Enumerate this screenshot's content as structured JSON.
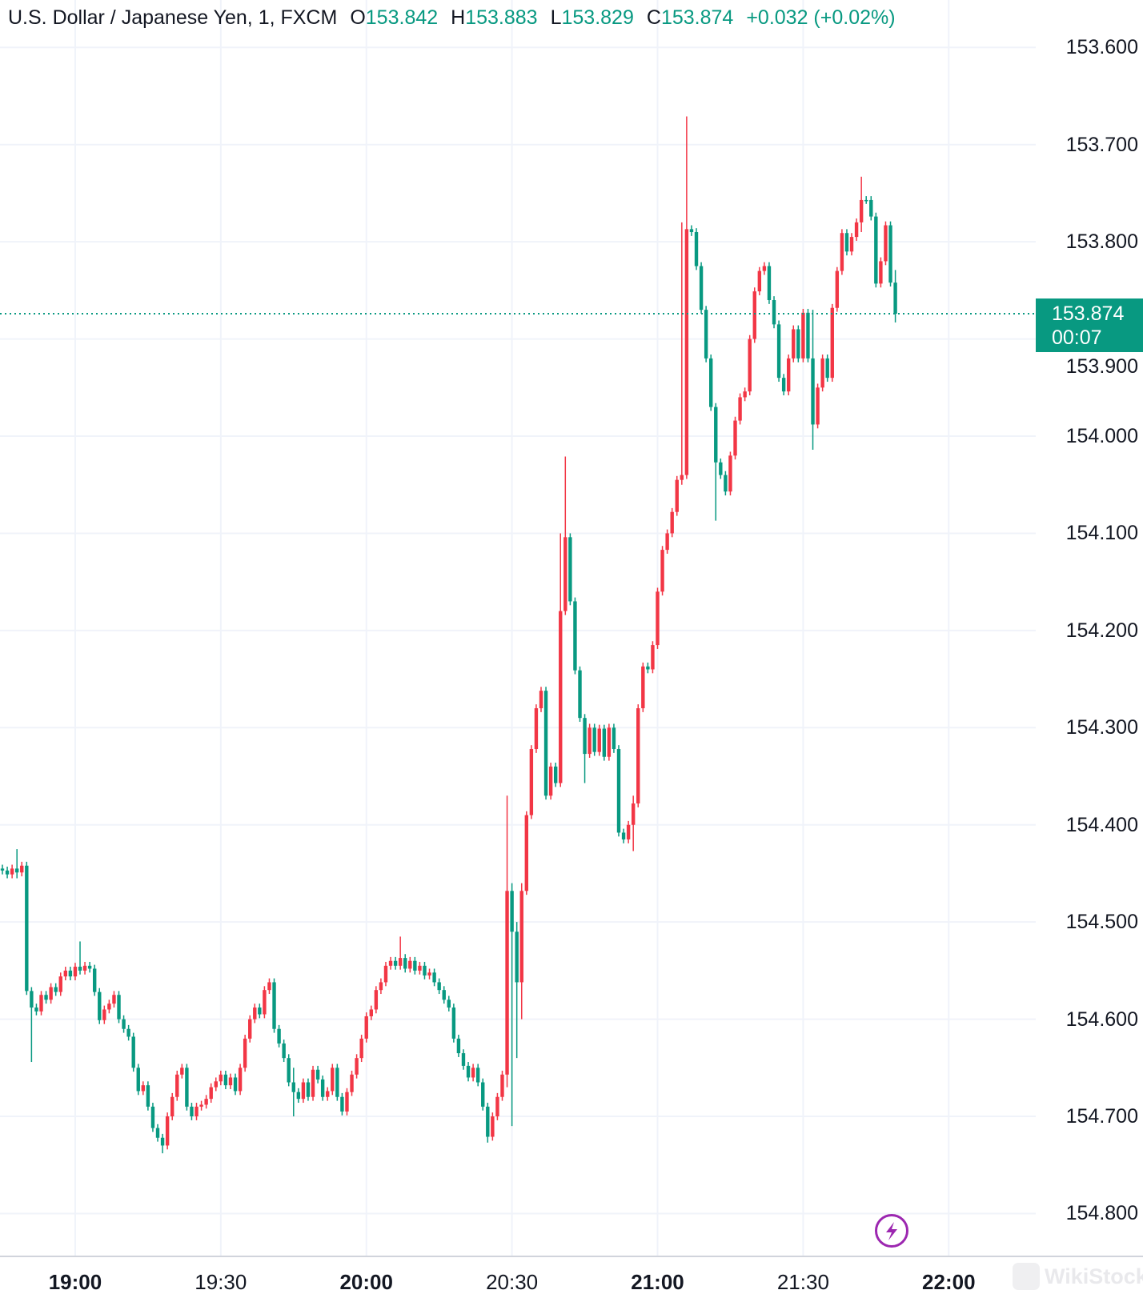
{
  "header": {
    "symbol": "U.S. Dollar / Japanese Yen, 1, FXCM",
    "open_label": "O",
    "open": "153.842",
    "high_label": "H",
    "high": "153.883",
    "low_label": "L",
    "low": "153.829",
    "close_label": "C",
    "close": "153.874",
    "change": "+0.032 (+0.02%)"
  },
  "current_price": {
    "price": "153.874",
    "countdown": "00:07"
  },
  "watermark": "WikiStock",
  "colors": {
    "up": "#089981",
    "down": "#f23645",
    "grid": "#f0f3fa",
    "lightning": "#9c27b0"
  },
  "icons": {
    "lightning": "lightning-bolt-icon"
  },
  "chart_data": {
    "type": "candlestick",
    "title": "U.S. Dollar / Japanese Yen, 1, FXCM",
    "interval": "1",
    "y_inverted": true,
    "ylim": [
      153.6,
      154.8
    ],
    "y_ticks": [
      "153.600",
      "153.700",
      "153.800",
      "153.900",
      "154.000",
      "154.100",
      "154.200",
      "154.300",
      "154.400",
      "154.500",
      "154.600",
      "154.700",
      "154.800"
    ],
    "x_ticks": [
      {
        "label": "19:00",
        "major": true
      },
      {
        "label": "19:30",
        "major": false
      },
      {
        "label": "20:00",
        "major": true
      },
      {
        "label": "20:30",
        "major": false
      },
      {
        "label": "21:00",
        "major": true
      },
      {
        "label": "21:30",
        "major": false
      },
      {
        "label": "22:00",
        "major": true
      }
    ],
    "grid": true,
    "first_open": 154.445,
    "close": [
      154.447,
      154.451,
      154.445,
      154.449,
      154.442,
      154.571,
      154.588,
      154.592,
      154.575,
      154.58,
      154.567,
      154.572,
      154.556,
      154.55,
      154.556,
      154.546,
      154.55,
      154.545,
      154.548,
      154.572,
      154.601,
      154.59,
      154.584,
      154.575,
      154.6,
      154.61,
      154.618,
      154.65,
      154.674,
      154.668,
      154.69,
      154.712,
      154.722,
      154.73,
      154.7,
      154.68,
      154.657,
      154.65,
      154.69,
      154.7,
      154.69,
      154.688,
      154.682,
      154.67,
      154.664,
      154.657,
      154.668,
      154.66,
      154.674,
      154.65,
      154.62,
      154.6,
      154.588,
      154.595,
      154.57,
      154.562,
      154.61,
      154.625,
      154.64,
      154.665,
      154.675,
      154.682,
      154.665,
      154.68,
      154.652,
      154.662,
      154.68,
      154.674,
      154.65,
      154.68,
      154.695,
      154.675,
      154.657,
      154.64,
      154.62,
      154.597,
      154.59,
      154.57,
      154.562,
      154.545,
      154.54,
      154.545,
      154.537,
      154.548,
      154.54,
      154.55,
      154.545,
      154.555,
      154.552,
      154.562,
      154.57,
      154.58,
      154.588,
      154.62,
      154.635,
      154.648,
      154.66,
      154.65,
      154.665,
      154.69,
      154.721,
      154.7,
      154.68,
      154.657,
      154.468,
      154.51,
      154.562,
      154.468,
      154.39,
      154.322,
      154.28,
      154.262,
      154.37,
      154.34,
      154.357,
      154.18,
      154.104,
      154.17,
      154.241,
      154.29,
      154.327,
      154.3,
      154.325,
      154.301,
      154.33,
      154.3,
      154.322,
      154.408,
      154.415,
      154.4,
      154.378,
      154.28,
      154.237,
      154.24,
      154.215,
      154.16,
      154.117,
      154.1,
      154.078,
      154.045,
      154.04,
      153.787,
      153.79,
      153.825,
      153.87,
      153.92,
      153.97,
      154.027,
      154.04,
      154.057,
      154.02,
      153.984,
      153.96,
      153.954,
      153.9,
      153.851,
      153.83,
      153.825,
      153.86,
      153.885,
      153.94,
      153.954,
      153.92,
      153.89,
      153.92,
      153.873,
      153.92,
      153.988,
      153.95,
      153.92,
      153.94,
      153.868,
      153.83,
      153.791,
      153.81,
      153.795,
      153.78,
      153.757,
      153.757,
      153.774,
      153.843,
      153.82,
      153.783,
      153.842,
      153.874
    ],
    "wicks": [
      {
        "time": "18:48",
        "low": 154.425,
        "high": 154.455
      },
      {
        "time": "18:51",
        "low": 154.57,
        "high": 154.644
      },
      {
        "time": "19:01",
        "low": 154.52,
        "high": 154.552
      },
      {
        "time": "19:18",
        "low": 154.722,
        "high": 154.738
      },
      {
        "time": "19:45",
        "low": 154.65,
        "high": 154.7
      },
      {
        "time": "20:07",
        "low": 154.515,
        "high": 154.545
      },
      {
        "time": "20:25",
        "low": 154.69,
        "high": 154.727
      },
      {
        "time": "20:29",
        "low": 154.37,
        "high": 154.67
      },
      {
        "time": "20:30",
        "low": 154.46,
        "high": 154.71
      },
      {
        "time": "20:31",
        "low": 154.5,
        "high": 154.64
      },
      {
        "time": "20:32",
        "low": 154.46,
        "high": 154.6
      },
      {
        "time": "20:40",
        "low": 154.1,
        "high": 154.19
      },
      {
        "time": "20:41",
        "low": 154.021,
        "high": 154.18
      },
      {
        "time": "20:45",
        "low": 154.29,
        "high": 154.357
      },
      {
        "time": "20:55",
        "low": 154.37,
        "high": 154.427
      },
      {
        "time": "21:05",
        "low": 153.78,
        "high": 154.05
      },
      {
        "time": "21:06",
        "low": 153.671,
        "high": 154.04
      },
      {
        "time": "21:12",
        "low": 154.02,
        "high": 154.087
      },
      {
        "time": "21:32",
        "low": 153.87,
        "high": 154.014
      },
      {
        "time": "21:42",
        "low": 153.733,
        "high": 153.79
      },
      {
        "time": "21:49",
        "low": 153.829,
        "high": 153.883
      }
    ]
  }
}
